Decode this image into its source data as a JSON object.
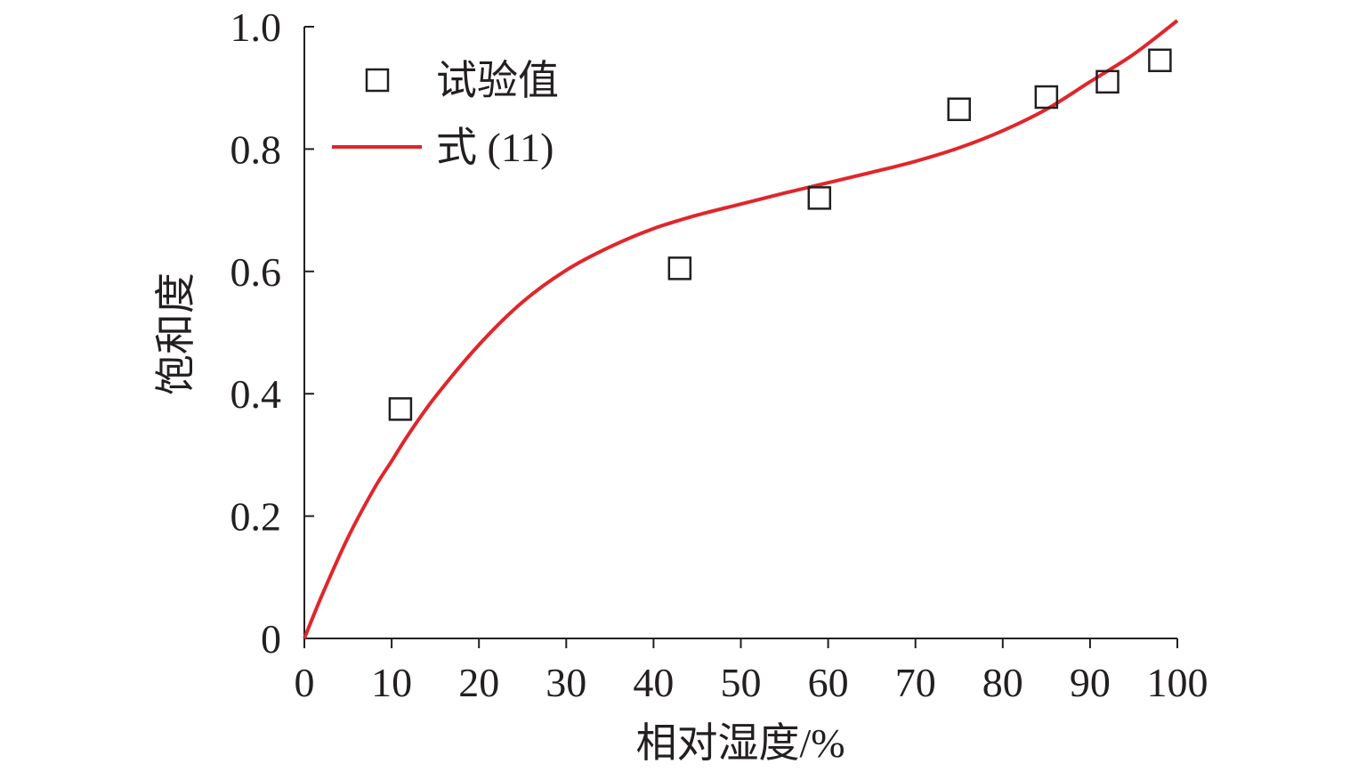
{
  "chart_data": {
    "type": "scatter",
    "xlabel": "相对湿度/%",
    "ylabel": "饱和度",
    "xlim": [
      0,
      100
    ],
    "ylim": [
      0,
      1.0
    ],
    "x_ticks": [
      "0",
      "10",
      "20",
      "30",
      "40",
      "50",
      "60",
      "70",
      "80",
      "90",
      "100"
    ],
    "y_ticks": [
      "0",
      "0.2",
      "0.4",
      "0.6",
      "0.8",
      "1.0"
    ],
    "grid": false,
    "legend_position": "top-left",
    "series": [
      {
        "name": "试验值",
        "kind": "scatter",
        "marker": "open-square",
        "color": "#231f20",
        "x": [
          11,
          43,
          59,
          75,
          85,
          92,
          98
        ],
        "y": [
          0.375,
          0.605,
          0.72,
          0.865,
          0.885,
          0.91,
          0.945
        ]
      },
      {
        "name": "式 (11)",
        "kind": "line",
        "color": "#e0262b",
        "x": [
          0,
          2,
          5,
          8,
          10,
          12,
          15,
          20,
          25,
          30,
          35,
          40,
          45,
          50,
          55,
          60,
          65,
          70,
          75,
          80,
          85,
          90,
          95,
          100
        ],
        "y": [
          0,
          0.07,
          0.165,
          0.245,
          0.29,
          0.335,
          0.395,
          0.48,
          0.55,
          0.602,
          0.64,
          0.67,
          0.692,
          0.71,
          0.728,
          0.745,
          0.762,
          0.78,
          0.802,
          0.83,
          0.865,
          0.91,
          0.955,
          1.01
        ]
      }
    ]
  }
}
